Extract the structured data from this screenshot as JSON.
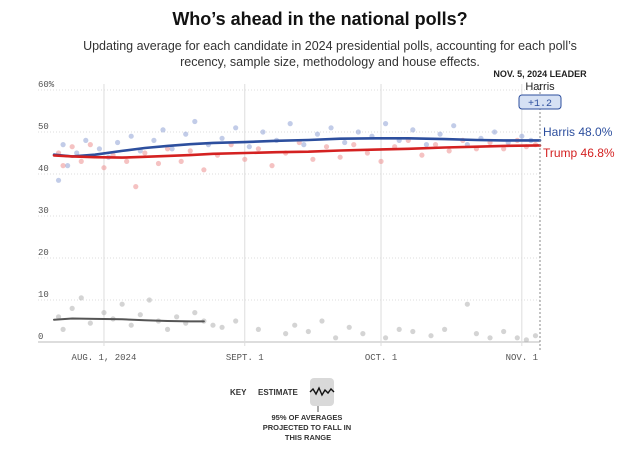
{
  "header": {
    "title": "Who’s ahead in the national polls?",
    "subtitle": "Updating average for each candidate in 2024 presidential polls, accounting for each poll’s recency, sample size, methodology and house effects."
  },
  "leader_box": {
    "label": "NOV. 5, 2024 LEADER",
    "name": "Harris",
    "margin": "+1.2"
  },
  "key": {
    "label": "KEY",
    "estimate_label": "ESTIMATE",
    "range_note": "95% OF AVERAGES PROJECTED TO FALL IN THIS RANGE"
  },
  "colors": {
    "harris": "#2d4f9e",
    "trump": "#d42121",
    "other": "#555555",
    "grid": "#dddddd"
  },
  "chart_data": {
    "type": "line",
    "x_start": "2024-07-21",
    "x_end": "2024-11-05",
    "x_ticks": [
      {
        "date": "2024-08-01",
        "label": "AUG. 1, 2024"
      },
      {
        "date": "2024-09-01",
        "label": "SEPT. 1"
      },
      {
        "date": "2024-10-01",
        "label": "OCT. 1"
      },
      {
        "date": "2024-11-01",
        "label": "NOV. 1"
      }
    ],
    "ylim": [
      0,
      60
    ],
    "y_ticks": [
      {
        "value": 0,
        "label": "0"
      },
      {
        "value": 10,
        "label": "10"
      },
      {
        "value": 20,
        "label": "20"
      },
      {
        "value": 30,
        "label": "30"
      },
      {
        "value": 40,
        "label": "40"
      },
      {
        "value": 50,
        "label": "50"
      },
      {
        "value": 60,
        "label": "60%"
      }
    ],
    "grid": true,
    "series": [
      {
        "name": "Harris",
        "end_label": "Harris 48.0%",
        "color": "#2d4f9e",
        "points": [
          [
            "2024-07-21",
            44.6
          ],
          [
            "2024-07-25",
            44.2
          ],
          [
            "2024-07-30",
            44.6
          ],
          [
            "2024-08-05",
            45.5
          ],
          [
            "2024-08-10",
            46.2
          ],
          [
            "2024-08-15",
            46.7
          ],
          [
            "2024-08-20",
            47.1
          ],
          [
            "2024-08-25",
            47.4
          ],
          [
            "2024-09-01",
            47.6
          ],
          [
            "2024-09-08",
            47.9
          ],
          [
            "2024-09-15",
            48.1
          ],
          [
            "2024-09-22",
            48.4
          ],
          [
            "2024-09-30",
            48.5
          ],
          [
            "2024-10-07",
            48.5
          ],
          [
            "2024-10-15",
            48.3
          ],
          [
            "2024-10-22",
            48.1
          ],
          [
            "2024-10-28",
            48.0
          ],
          [
            "2024-11-05",
            48.0
          ]
        ]
      },
      {
        "name": "Trump",
        "end_label": "Trump 46.8%",
        "color": "#d42121",
        "points": [
          [
            "2024-07-21",
            44.4
          ],
          [
            "2024-07-25",
            44.2
          ],
          [
            "2024-07-30",
            44.0
          ],
          [
            "2024-08-05",
            43.9
          ],
          [
            "2024-08-10",
            44.1
          ],
          [
            "2024-08-15",
            44.3
          ],
          [
            "2024-08-20",
            44.5
          ],
          [
            "2024-08-25",
            44.8
          ],
          [
            "2024-09-01",
            45.0
          ],
          [
            "2024-09-08",
            45.2
          ],
          [
            "2024-09-15",
            45.3
          ],
          [
            "2024-09-22",
            45.6
          ],
          [
            "2024-09-30",
            45.8
          ],
          [
            "2024-10-07",
            46.0
          ],
          [
            "2024-10-15",
            46.3
          ],
          [
            "2024-10-22",
            46.5
          ],
          [
            "2024-10-28",
            46.7
          ],
          [
            "2024-11-05",
            46.8
          ]
        ]
      },
      {
        "name": "",
        "color": "#555555",
        "points": [
          [
            "2024-07-21",
            5.3
          ],
          [
            "2024-07-25",
            5.6
          ],
          [
            "2024-07-30",
            5.5
          ],
          [
            "2024-08-05",
            5.4
          ],
          [
            "2024-08-10",
            5.2
          ],
          [
            "2024-08-15",
            5.0
          ],
          [
            "2024-08-20",
            4.9
          ],
          [
            "2024-08-23",
            4.9
          ]
        ]
      }
    ],
    "polls": {
      "harris": [
        [
          "2024-07-22",
          38.5
        ],
        [
          "2024-07-23",
          47
        ],
        [
          "2024-07-24",
          42
        ],
        [
          "2024-07-26",
          45
        ],
        [
          "2024-07-28",
          48
        ],
        [
          "2024-07-31",
          46
        ],
        [
          "2024-08-02",
          44
        ],
        [
          "2024-08-04",
          47.5
        ],
        [
          "2024-08-07",
          49
        ],
        [
          "2024-08-09",
          45.5
        ],
        [
          "2024-08-12",
          48
        ],
        [
          "2024-08-14",
          50.5
        ],
        [
          "2024-08-16",
          46
        ],
        [
          "2024-08-19",
          49.5
        ],
        [
          "2024-08-21",
          52.5
        ],
        [
          "2024-08-24",
          47
        ],
        [
          "2024-08-27",
          48.5
        ],
        [
          "2024-08-30",
          51
        ],
        [
          "2024-09-02",
          46.5
        ],
        [
          "2024-09-05",
          50
        ],
        [
          "2024-09-08",
          48
        ],
        [
          "2024-09-11",
          52
        ],
        [
          "2024-09-14",
          47
        ],
        [
          "2024-09-17",
          49.5
        ],
        [
          "2024-09-20",
          51
        ],
        [
          "2024-09-23",
          47.5
        ],
        [
          "2024-09-26",
          50
        ],
        [
          "2024-09-29",
          49
        ],
        [
          "2024-10-02",
          52
        ],
        [
          "2024-10-05",
          48
        ],
        [
          "2024-10-08",
          50.5
        ],
        [
          "2024-10-11",
          47
        ],
        [
          "2024-10-14",
          49.5
        ],
        [
          "2024-10-17",
          51.5
        ],
        [
          "2024-10-20",
          47
        ],
        [
          "2024-10-23",
          48.5
        ],
        [
          "2024-10-26",
          50
        ],
        [
          "2024-10-29",
          47.5
        ],
        [
          "2024-11-01",
          49
        ],
        [
          "2024-11-03",
          48
        ]
      ],
      "trump": [
        [
          "2024-07-22",
          45
        ],
        [
          "2024-07-23",
          42
        ],
        [
          "2024-07-25",
          46.5
        ],
        [
          "2024-07-27",
          43
        ],
        [
          "2024-07-29",
          47
        ],
        [
          "2024-08-01",
          41.5
        ],
        [
          "2024-08-03",
          44.5
        ],
        [
          "2024-08-06",
          43
        ],
        [
          "2024-08-08",
          37
        ],
        [
          "2024-08-10",
          45
        ],
        [
          "2024-08-13",
          42.5
        ],
        [
          "2024-08-15",
          46
        ],
        [
          "2024-08-18",
          43
        ],
        [
          "2024-08-20",
          45.5
        ],
        [
          "2024-08-23",
          41
        ],
        [
          "2024-08-26",
          44.5
        ],
        [
          "2024-08-29",
          47
        ],
        [
          "2024-09-01",
          43.5
        ],
        [
          "2024-09-04",
          46
        ],
        [
          "2024-09-07",
          42
        ],
        [
          "2024-09-10",
          45
        ],
        [
          "2024-09-13",
          47.5
        ],
        [
          "2024-09-16",
          43.5
        ],
        [
          "2024-09-19",
          46.5
        ],
        [
          "2024-09-22",
          44
        ],
        [
          "2024-09-25",
          47
        ],
        [
          "2024-09-28",
          45
        ],
        [
          "2024-10-01",
          43
        ],
        [
          "2024-10-04",
          46.5
        ],
        [
          "2024-10-07",
          48
        ],
        [
          "2024-10-10",
          44.5
        ],
        [
          "2024-10-13",
          47
        ],
        [
          "2024-10-16",
          45.5
        ],
        [
          "2024-10-19",
          48
        ],
        [
          "2024-10-22",
          46
        ],
        [
          "2024-10-25",
          47.5
        ],
        [
          "2024-10-28",
          46
        ],
        [
          "2024-10-31",
          48
        ],
        [
          "2024-11-02",
          46.5
        ],
        [
          "2024-11-04",
          47
        ]
      ],
      "other": [
        [
          "2024-07-22",
          6
        ],
        [
          "2024-07-23",
          3
        ],
        [
          "2024-07-25",
          8
        ],
        [
          "2024-07-27",
          10.5
        ],
        [
          "2024-07-29",
          4.5
        ],
        [
          "2024-08-01",
          7
        ],
        [
          "2024-08-03",
          5.5
        ],
        [
          "2024-08-05",
          9
        ],
        [
          "2024-08-07",
          4
        ],
        [
          "2024-08-09",
          6.5
        ],
        [
          "2024-08-11",
          10
        ],
        [
          "2024-08-13",
          5
        ],
        [
          "2024-08-15",
          3
        ],
        [
          "2024-08-17",
          6
        ],
        [
          "2024-08-19",
          4.5
        ],
        [
          "2024-08-21",
          7
        ],
        [
          "2024-08-23",
          5
        ],
        [
          "2024-08-25",
          4
        ],
        [
          "2024-08-27",
          3.5
        ],
        [
          "2024-08-30",
          5
        ],
        [
          "2024-09-04",
          3
        ],
        [
          "2024-09-10",
          2
        ],
        [
          "2024-09-12",
          4
        ],
        [
          "2024-09-15",
          2.5
        ],
        [
          "2024-09-18",
          5
        ],
        [
          "2024-09-21",
          1
        ],
        [
          "2024-09-24",
          3.5
        ],
        [
          "2024-09-27",
          2
        ],
        [
          "2024-10-02",
          1
        ],
        [
          "2024-10-05",
          3
        ],
        [
          "2024-10-08",
          2.5
        ],
        [
          "2024-10-12",
          1.5
        ],
        [
          "2024-10-15",
          3
        ],
        [
          "2024-10-20",
          9
        ],
        [
          "2024-10-22",
          2
        ],
        [
          "2024-10-25",
          1
        ],
        [
          "2024-10-28",
          2.5
        ],
        [
          "2024-10-31",
          1
        ],
        [
          "2024-11-02",
          0.5
        ],
        [
          "2024-11-04",
          1.5
        ]
      ]
    }
  }
}
